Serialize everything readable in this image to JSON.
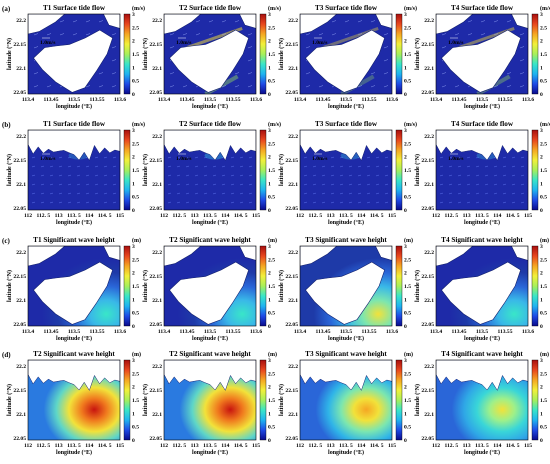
{
  "colors": {
    "water_low": "#1e2aa8",
    "land": "#ffffff",
    "frame": "#000000"
  },
  "colorbar_stops": [
    "#0a0a8c",
    "#1f4ae6",
    "#1fb4f0",
    "#39e6c8",
    "#a8f05a",
    "#f2f03a",
    "#f5a623",
    "#e8461e",
    "#a80f0f"
  ],
  "common": {
    "ylabel": "latitude (°N)",
    "xlabel": "longitude (°E)"
  },
  "rows": [
    {
      "label": "(a)",
      "unit": "(m/s)",
      "cbar_ticks": [
        "0",
        "0.5",
        "1",
        "1.5",
        "2",
        "2.5",
        "3"
      ],
      "xticks": [
        "113.4",
        "113.45",
        "113.5",
        "113.55",
        "113.6"
      ],
      "yticks": [
        "22.2",
        "22.15",
        "22.1",
        "22.05"
      ],
      "yticks_top": "22.2",
      "panels": [
        {
          "title": "T1 Surface tide flow",
          "scale": "1.0m/s",
          "style": "tide_zoom",
          "intensity": 0.1
        },
        {
          "title": "T2 Surface tide flow",
          "scale": "1.0m/s",
          "style": "tide_zoom",
          "intensity": 0.7
        },
        {
          "title": "T3 Surface tide flow",
          "scale": "1.0m/s",
          "style": "tide_zoom",
          "intensity": 0.5
        },
        {
          "title": "T4 Surface tide flow",
          "scale": "1.0m/s",
          "style": "tide_zoom",
          "intensity": 0.6
        }
      ]
    },
    {
      "label": "(b)",
      "unit": "(m/s)",
      "cbar_ticks": [
        "0",
        "0.5",
        "1",
        "1.5",
        "2",
        "2.5",
        "3"
      ],
      "xticks": [
        "112",
        "112. 5",
        "113",
        "113. 5",
        "114",
        "114. 5",
        "115"
      ],
      "yticks": [
        "22.2",
        "22.15",
        "22.1",
        "22.05"
      ],
      "panels": [
        {
          "title": "T1 Surface tide flow",
          "scale": "1.0m/s",
          "style": "tide_wide",
          "intensity": 0.15
        },
        {
          "title": "T2 Surface tide flow",
          "scale": "1.0m/s",
          "style": "tide_wide",
          "intensity": 0.35
        },
        {
          "title": "T3 Surface tide flow",
          "scale": "1.0m/s",
          "style": "tide_wide",
          "intensity": 0.25
        },
        {
          "title": "T4 Surface tide flow",
          "scale": "1.0m/s",
          "style": "tide_wide",
          "intensity": 0.2
        }
      ]
    },
    {
      "label": "(c)",
      "unit": "(m)",
      "cbar_ticks": [
        "0",
        "0.5",
        "1",
        "1.5",
        "2",
        "2.5",
        "3"
      ],
      "xticks": [
        "113.4",
        "113.45",
        "113.5",
        "113.55",
        "113.6"
      ],
      "yticks": [
        "22.2",
        "22.15",
        "22.1",
        "22.05"
      ],
      "panels": [
        {
          "title": "T1 Significant wave height",
          "style": "wave_zoom",
          "intensity": 0.2
        },
        {
          "title": "T2 Significant wave height",
          "style": "wave_zoom",
          "intensity": 0.45
        },
        {
          "title": "T3 Significant wave height",
          "style": "wave_zoom",
          "intensity": 0.55
        },
        {
          "title": "T4 Significant wave height",
          "style": "wave_zoom",
          "intensity": 0.3
        }
      ]
    },
    {
      "label": "(d)",
      "unit": "(m)",
      "cbar_ticks": [
        "0",
        "0.5",
        "1",
        "1.5",
        "2",
        "2.5",
        "3"
      ],
      "xticks": [
        "112",
        "112. 5",
        "113",
        "113. 5",
        "114",
        "114. 5",
        "115"
      ],
      "yticks": [
        "22.2",
        "22.15",
        "22.1",
        "22.05"
      ],
      "panels": [
        {
          "title": "T2 Significant wave height",
          "style": "wave_wide",
          "intensity": 0.9
        },
        {
          "title": "T2 Significant wave height",
          "style": "wave_wide",
          "intensity": 0.75
        },
        {
          "title": "T3 Significant wave height",
          "style": "wave_wide",
          "intensity": 0.5
        },
        {
          "title": "T4 Significant wave height",
          "style": "wave_wide",
          "intensity": 0.35
        }
      ]
    }
  ]
}
